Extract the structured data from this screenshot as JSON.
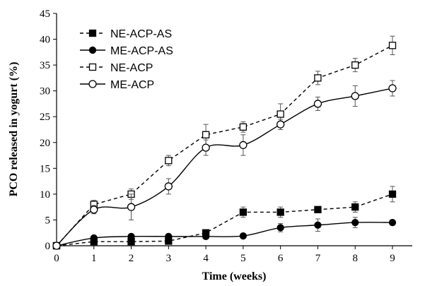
{
  "chart_data": {
    "type": "line",
    "xlabel": "Time (weeks)",
    "ylabel": "PCO released in yogurt (%)",
    "xlim": [
      0,
      9
    ],
    "ylim": [
      0,
      45
    ],
    "xticks": [
      0,
      1,
      2,
      3,
      4,
      5,
      6,
      7,
      8,
      9
    ],
    "yticks": [
      0,
      5,
      10,
      15,
      20,
      25,
      30,
      35,
      40,
      45
    ],
    "grid": false,
    "legend_position": "top-left",
    "x": [
      0,
      1,
      2,
      3,
      4,
      5,
      6,
      7,
      8,
      9
    ],
    "series": [
      {
        "name": "NE-ACP-AS",
        "values": [
          0,
          0.8,
          0.8,
          0.9,
          2.5,
          6.5,
          6.5,
          7.0,
          7.5,
          10.0
        ],
        "errors": [
          0,
          0,
          0,
          0,
          0.5,
          1.0,
          1.0,
          0,
          1.0,
          1.5
        ],
        "marker": "filled-square",
        "line": "dashed",
        "color": "#000000"
      },
      {
        "name": "ME-ACP-AS",
        "values": [
          0,
          1.5,
          1.8,
          1.8,
          1.8,
          1.9,
          3.5,
          4.0,
          4.5,
          4.5
        ],
        "errors": [
          0,
          0.2,
          0.2,
          0.2,
          0.2,
          0.2,
          0.8,
          1.2,
          1.0,
          0.5
        ],
        "marker": "filled-circle",
        "line": "solid",
        "color": "#000000"
      },
      {
        "name": "NE-ACP",
        "values": [
          0,
          8.0,
          10.0,
          16.5,
          21.5,
          23.0,
          25.5,
          32.5,
          35.0,
          38.8
        ],
        "errors": [
          0,
          0.8,
          1.0,
          1.0,
          2.0,
          1.0,
          2.0,
          1.3,
          1.3,
          1.8
        ],
        "marker": "open-square",
        "line": "dashed",
        "color": "#000000"
      },
      {
        "name": "ME-ACP",
        "values": [
          0,
          7.0,
          7.5,
          11.5,
          19.0,
          19.5,
          23.5,
          27.5,
          29.0,
          30.5
        ],
        "errors": [
          0,
          0.8,
          2.5,
          1.5,
          1.5,
          2.0,
          1.0,
          1.3,
          2.0,
          1.5
        ],
        "marker": "open-circle",
        "line": "solid",
        "color": "#000000"
      }
    ]
  }
}
